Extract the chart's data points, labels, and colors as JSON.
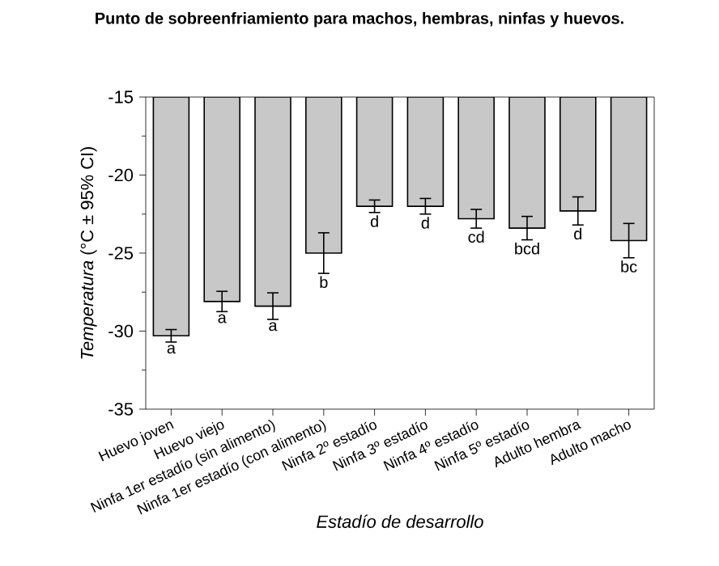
{
  "chart_data": {
    "type": "bar",
    "title": "Punto de sobreenfriamiento para machos, hembras, ninfas y huevos.",
    "xlabel": "Estadío de desarrollo",
    "ylabel": "*Temperatura* (°C ± 95% CI)",
    "categories": [
      "Huevo joven",
      "Huevo viejo",
      "Ninfa 1er estadío (sin alimento)",
      "Ninfa 1er estadío (con alimento)",
      "Ninfa 2º estadío",
      "Ninfa 3º estadío",
      "Ninfa 4º estadío",
      "Ninfa 5º estadío",
      "Adulto hembra",
      "Adulto macho"
    ],
    "values": [
      -30.3,
      -28.1,
      -28.4,
      -25.0,
      -22.0,
      -22.0,
      -22.8,
      -23.4,
      -22.3,
      -24.2
    ],
    "errors": [
      0.4,
      0.65,
      0.85,
      1.3,
      0.4,
      0.5,
      0.6,
      0.75,
      0.9,
      1.1
    ],
    "color": "#c8c8c8",
    "ylim": [
      -35,
      -15
    ],
    "yticks": [
      -35,
      -30,
      -25,
      -20,
      -15
    ],
    "grid": false,
    "annotations": [
      {
        "text": "a",
        "x": "Huevo joven",
        "y": -30.7
      },
      {
        "text": "a",
        "x": "Huevo viejo",
        "y": -28.75
      },
      {
        "text": "a",
        "x": "Ninfa 1er estadío (sin alimento)",
        "y": -29.25
      },
      {
        "text": "b",
        "x": "Ninfa 1er estadío (con alimento)",
        "y": -26.3
      },
      {
        "text": "d",
        "x": "Ninfa 2º estadío",
        "y": -22.4
      },
      {
        "text": "d",
        "x": "Ninfa 3º estadío",
        "y": -22.5
      },
      {
        "text": "cd",
        "x": "Ninfa 4º estadío",
        "y": -23.4
      },
      {
        "text": "bcd",
        "x": "Ninfa 5º estadío",
        "y": -24.15
      },
      {
        "text": "d",
        "x": "Adulto hembra",
        "y": -23.2
      },
      {
        "text": "bc",
        "x": "Adulto macho",
        "y": -25.3
      }
    ]
  }
}
